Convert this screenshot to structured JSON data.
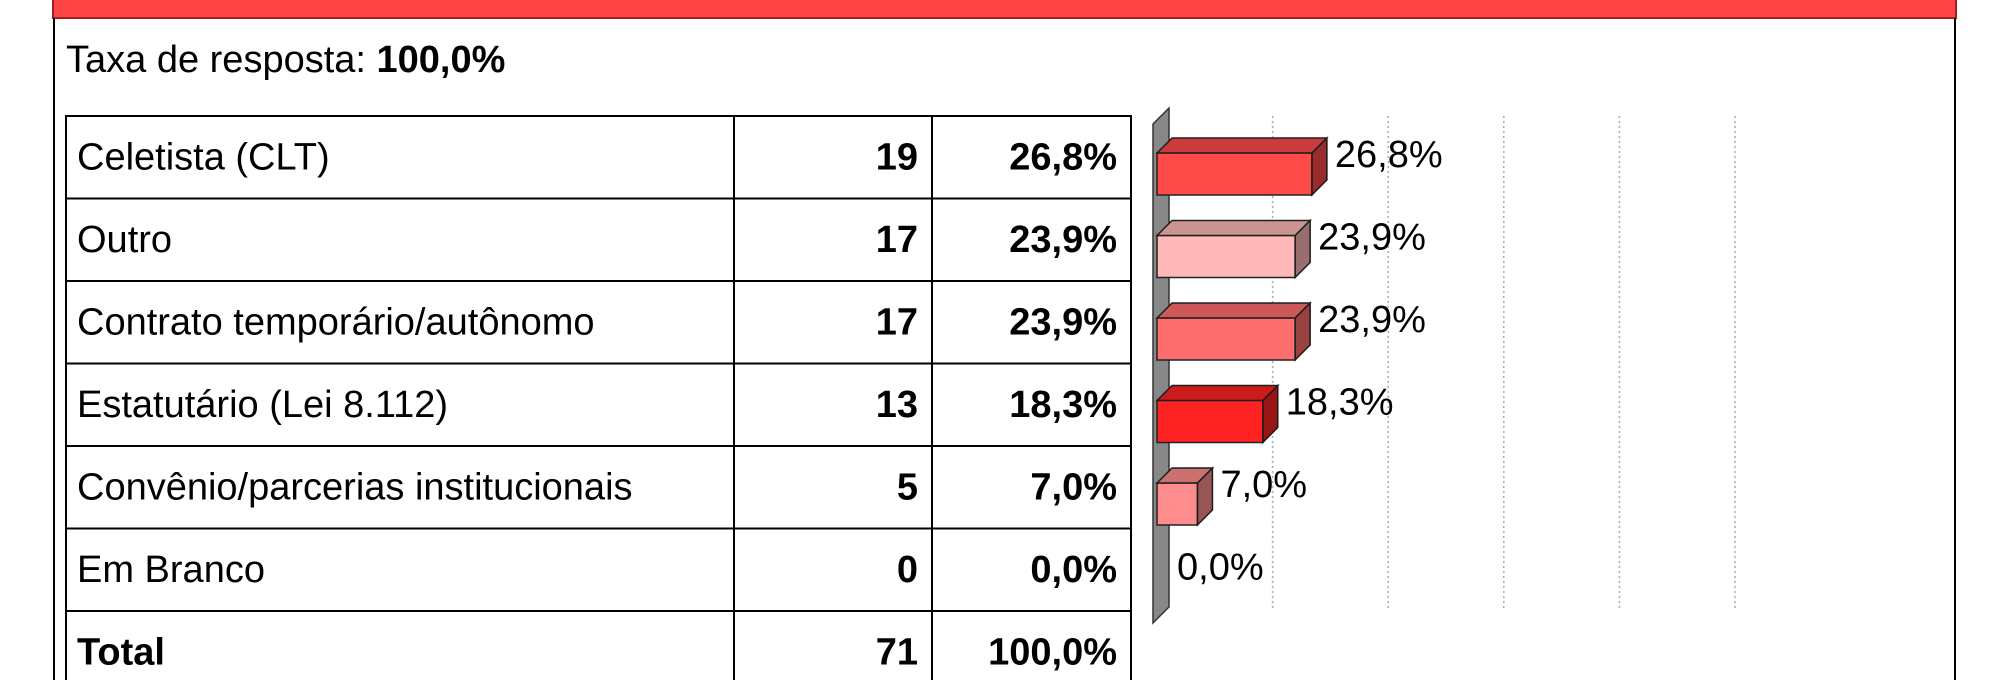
{
  "header": {
    "label": "Taxa de resposta:",
    "value": "100,0%"
  },
  "table": {
    "rows": [
      {
        "label": "Celetista (CLT)",
        "count": 19,
        "percent": 26.8,
        "percent_label": "26,8%",
        "color": "#ff4a4a"
      },
      {
        "label": "Outro",
        "count": 17,
        "percent": 23.9,
        "percent_label": "23,9%",
        "color": "#ffb8b8"
      },
      {
        "label": "Contrato temporário/autônomo",
        "count": 17,
        "percent": 23.9,
        "percent_label": "23,9%",
        "color": "#ff6e6e"
      },
      {
        "label": "Estatutário (Lei 8.112)",
        "count": 13,
        "percent": 18.3,
        "percent_label": "18,3%",
        "color": "#ff2222"
      },
      {
        "label": "Convênio/parcerias institucionais",
        "count": 5,
        "percent": 7.0,
        "percent_label": "7,0%",
        "color": "#ff8c8c"
      },
      {
        "label": "Em Branco",
        "count": 0,
        "percent": 0.0,
        "percent_label": "0,0%",
        "color": "#ff8c8c"
      }
    ],
    "total": {
      "label": "Total",
      "count": 71,
      "percent_label": "100,0%"
    }
  },
  "chart": {
    "xlim": [
      0,
      100
    ],
    "xticks": [
      20,
      40,
      60,
      80,
      100
    ]
  }
}
